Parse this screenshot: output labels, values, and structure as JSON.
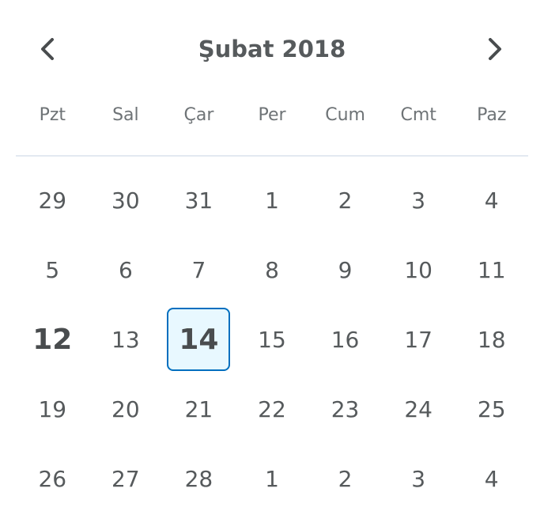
{
  "calendar": {
    "month_label": "Şubat 2018",
    "weekdays": [
      "Pzt",
      "Sal",
      "Çar",
      "Per",
      "Cum",
      "Cmt",
      "Paz"
    ],
    "weeks": [
      [
        "29",
        "30",
        "31",
        "1",
        "2",
        "3",
        "4"
      ],
      [
        "5",
        "6",
        "7",
        "8",
        "9",
        "10",
        "11"
      ],
      [
        "12",
        "13",
        "14",
        "15",
        "16",
        "17",
        "18"
      ],
      [
        "19",
        "20",
        "21",
        "22",
        "23",
        "24",
        "25"
      ],
      [
        "26",
        "27",
        "28",
        "1",
        "2",
        "3",
        "4"
      ]
    ],
    "today": "12",
    "selected": "14",
    "icons": {
      "prev": "chevron-left-icon",
      "next": "chevron-right-icon"
    },
    "colors": {
      "text": "#494c4e",
      "selected_border": "#006fbf",
      "selected_fill": "#e8f8ff",
      "divider": "#e3e9f1"
    }
  }
}
